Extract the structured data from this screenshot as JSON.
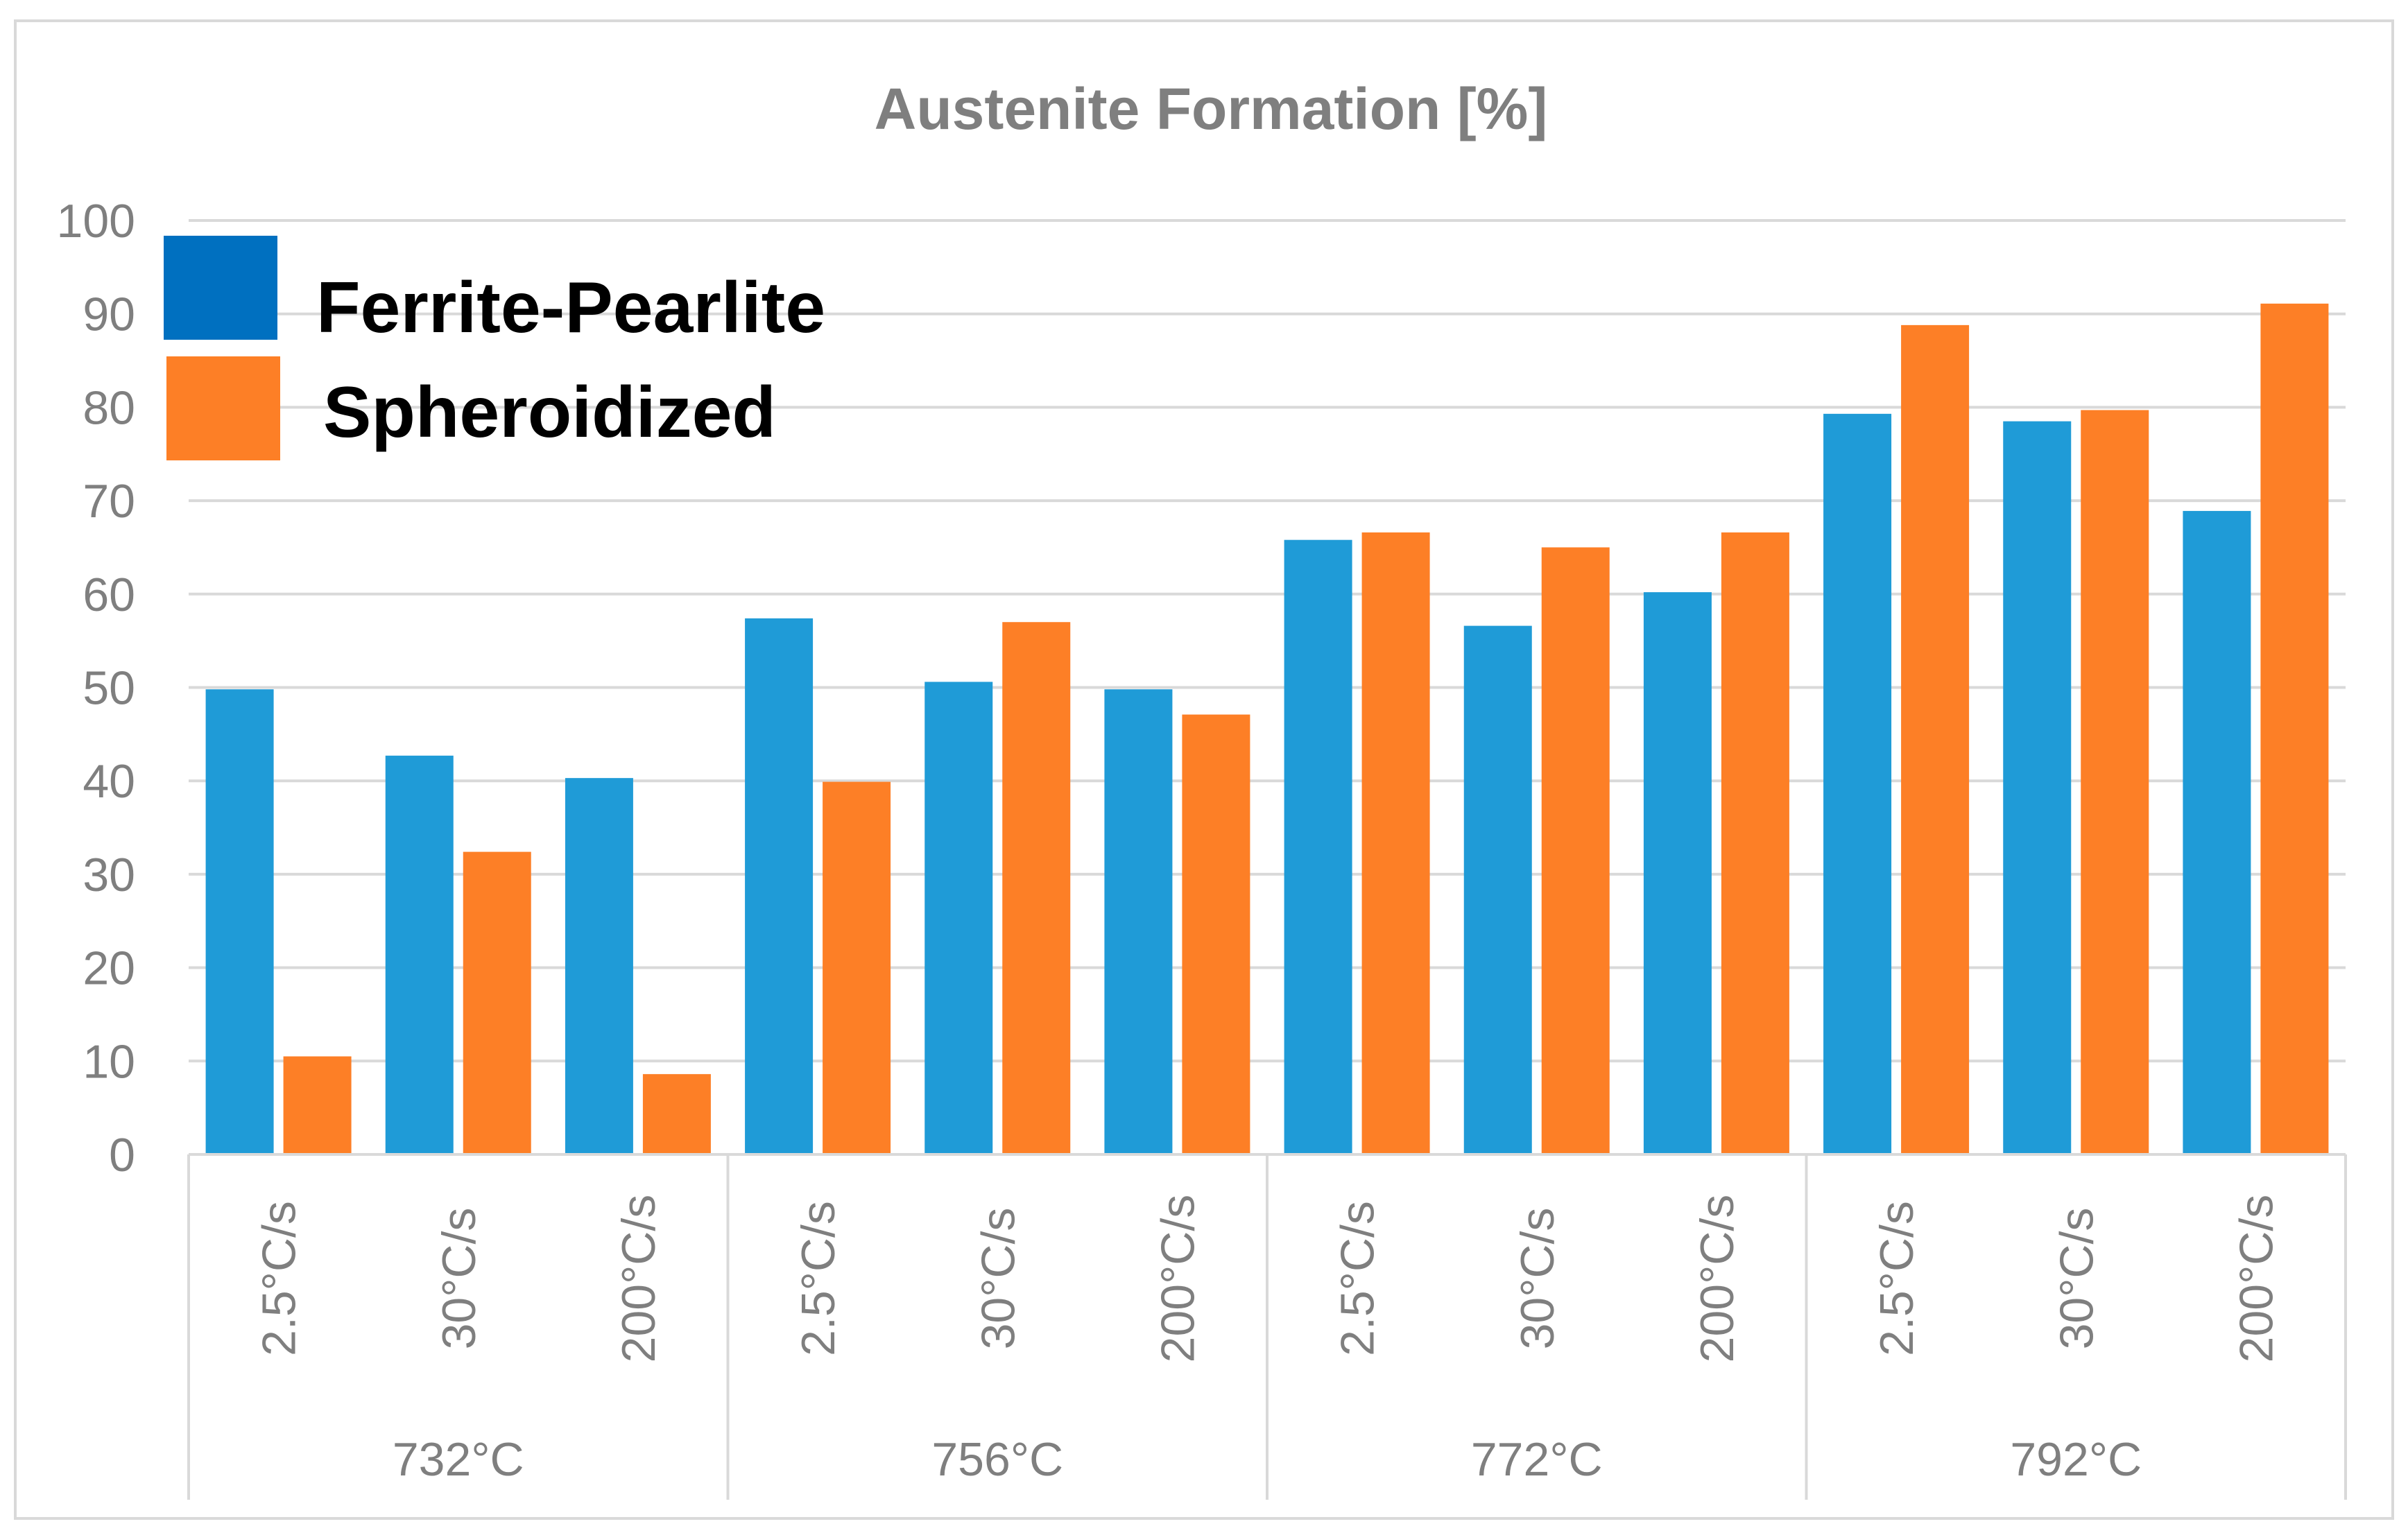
{
  "chart_data": {
    "type": "bar",
    "title": "Austenite Formation [%]",
    "xlabel": "",
    "ylabel": "",
    "ylim": [
      0,
      100
    ],
    "yticks": [
      0,
      10,
      20,
      30,
      40,
      50,
      60,
      70,
      80,
      90,
      100
    ],
    "grid": true,
    "legend_position": "top-left",
    "groups": [
      {
        "label": "732°C",
        "categories": [
          "2.5°C/s",
          "30°C/s",
          "200°C/s"
        ]
      },
      {
        "label": "756°C",
        "categories": [
          "2.5°C/s",
          "30°C/s",
          "200°C/s"
        ]
      },
      {
        "label": "772°C",
        "categories": [
          "2.5°C/s",
          "30°C/s",
          "200°C/s"
        ]
      },
      {
        "label": "792°C",
        "categories": [
          "2.5°C/s",
          "30°C/s",
          "200°C/s"
        ]
      }
    ],
    "series": [
      {
        "name": "Ferrite-Pearlite",
        "color": "#1f9bd7",
        "legend_color": "#0070c0",
        "values": [
          49.8,
          42.7,
          40.3,
          57.4,
          50.6,
          49.8,
          65.8,
          56.6,
          60.2,
          79.3,
          78.5,
          68.9
        ]
      },
      {
        "name": "Spheroidized",
        "color": "#fd7f26",
        "legend_color": "#fd7f26",
        "values": [
          10.5,
          32.4,
          8.6,
          39.9,
          57.0,
          47.1,
          66.6,
          65.0,
          66.6,
          88.8,
          79.7,
          91.1
        ]
      }
    ]
  }
}
